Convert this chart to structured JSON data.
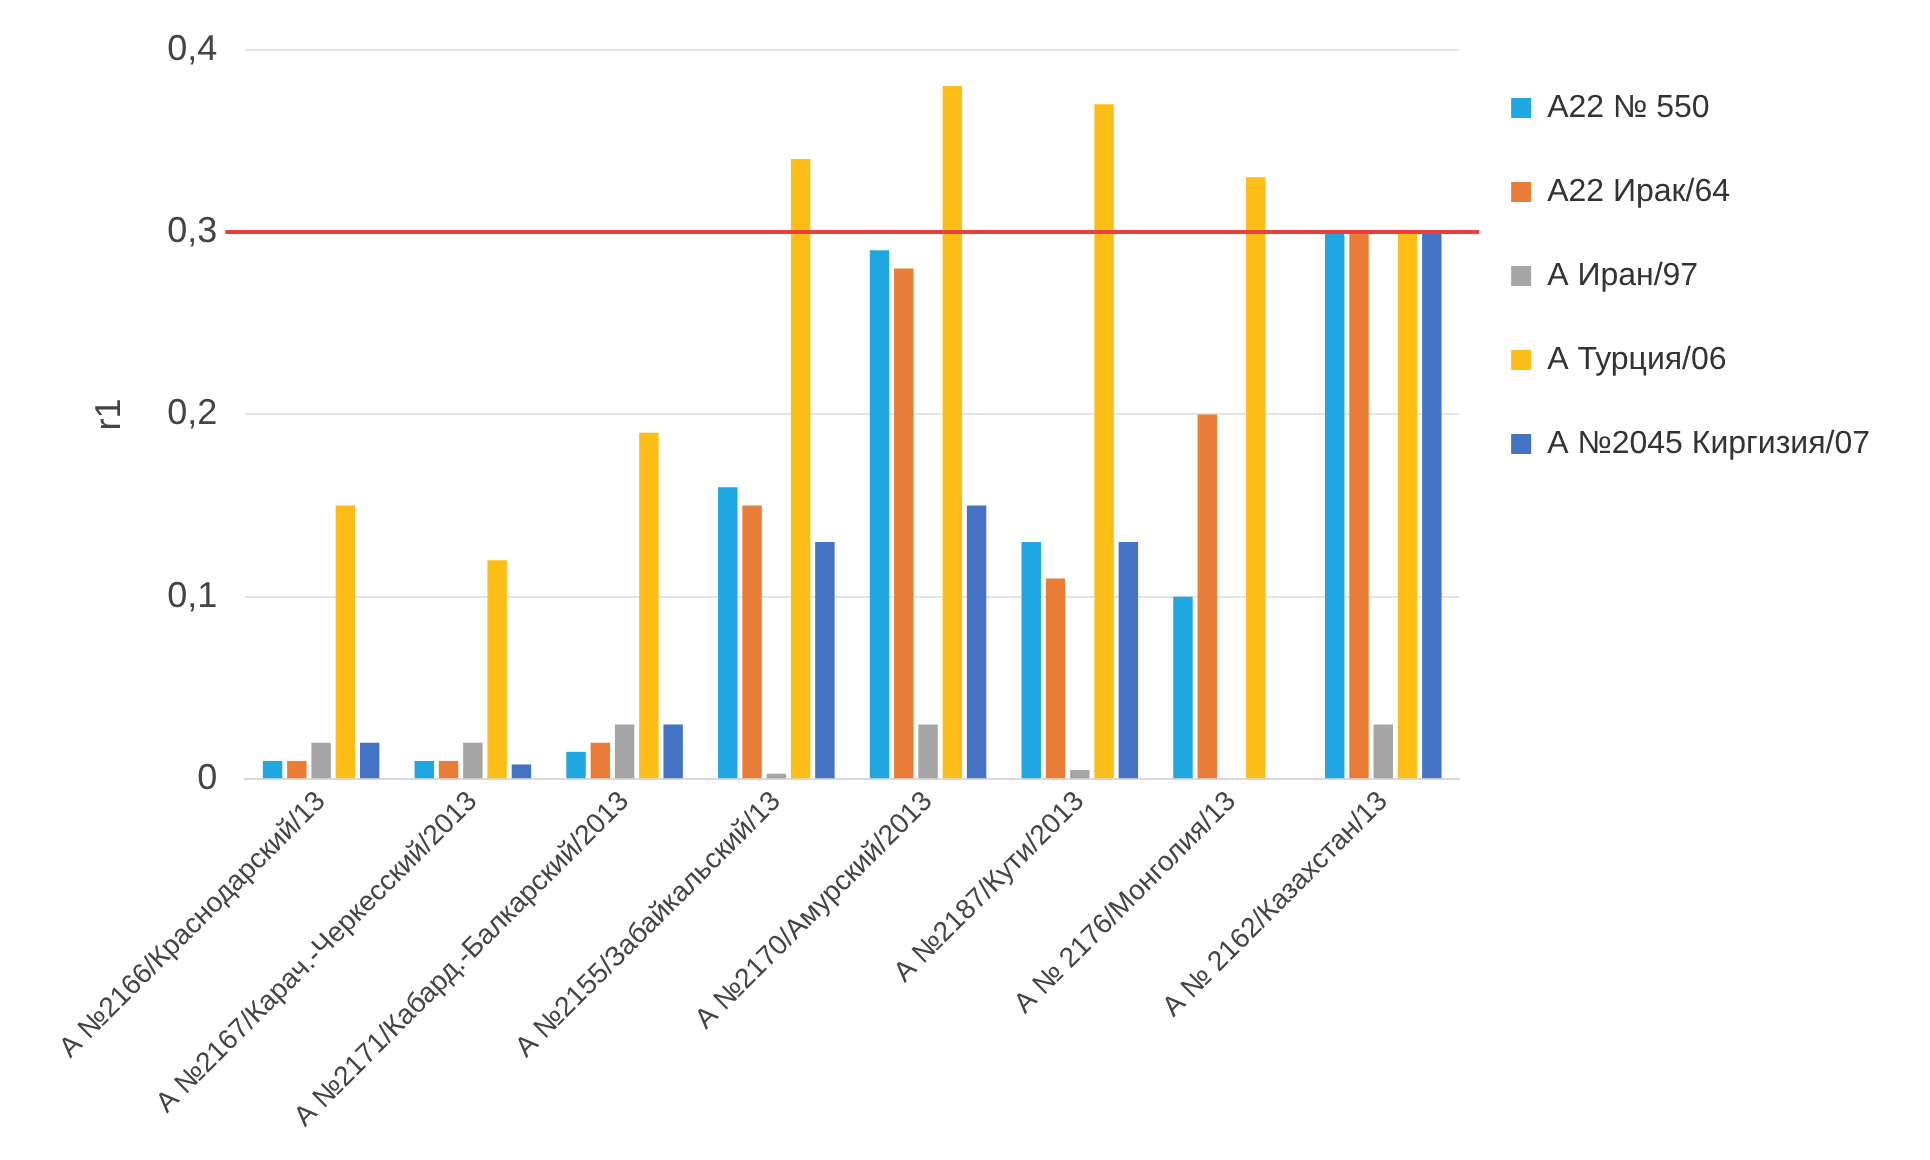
{
  "chart_data": {
    "type": "bar",
    "ylabel": "r1",
    "categories": [
      "А №2166/Краснодарский/13",
      "А №2167/Карач.-Черкесский/2013",
      "А №2171/Кабард.-Балкарский/2013",
      "А №2155/Забайкальский/13",
      "А №2170/Амурский/2013",
      "А №2187/Кути/2013",
      "А № 2176/Монголия/13",
      "А № 2162/Казахстан/13"
    ],
    "series": [
      {
        "name": "А22 № 550",
        "color": "#1ea7e1",
        "values": [
          0.01,
          0.01,
          0.015,
          0.16,
          0.29,
          0.13,
          0.1,
          0.3
        ]
      },
      {
        "name": "А22 Ирак/64",
        "color": "#e97c36",
        "values": [
          0.01,
          0.01,
          0.02,
          0.15,
          0.28,
          0.11,
          0.2,
          0.3
        ]
      },
      {
        "name": "А Иран/97",
        "color": "#a5a5a5",
        "values": [
          0.02,
          0.02,
          0.03,
          0.003,
          0.03,
          0.005,
          null,
          0.03
        ]
      },
      {
        "name": "А Турция/06",
        "color": "#fbbd16",
        "values": [
          0.15,
          0.12,
          0.19,
          0.34,
          0.38,
          0.37,
          0.33,
          0.3
        ]
      },
      {
        "name": "А №2045 Киргизия/07",
        "color": "#4472c4",
        "values": [
          0.02,
          0.008,
          0.03,
          0.13,
          0.15,
          0.13,
          null,
          0.3
        ]
      }
    ],
    "ylim": [
      0,
      0.4
    ],
    "yticks": [
      0,
      {
        "value": 0.1,
        "label": "0,1"
      },
      {
        "value": 0.2,
        "label": "0,2"
      },
      {
        "value": 0.3,
        "label": "0,3"
      },
      {
        "value": 0.4,
        "label": "0,4"
      }
    ],
    "grid": "y",
    "legend": "right",
    "ref_lines": [
      {
        "axis": "y",
        "value": 0.3,
        "color": "#e8403a"
      }
    ]
  }
}
